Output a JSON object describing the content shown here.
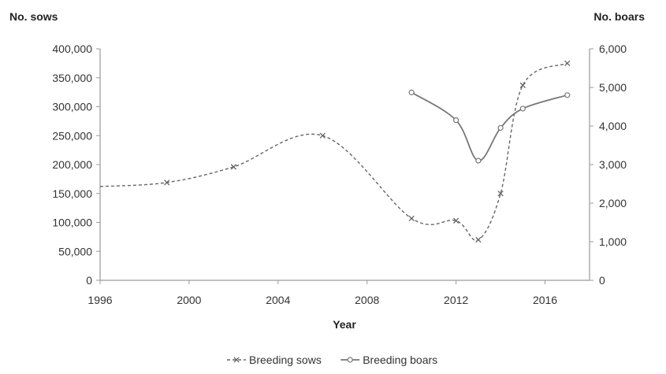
{
  "chart_data": {
    "type": "line",
    "xlabel": "Year",
    "ylabel_left": "No. sows",
    "ylabel_right": "No. boars",
    "xlim": [
      1996,
      2018
    ],
    "x_ticks": [
      1996,
      2000,
      2004,
      2008,
      2012,
      2016
    ],
    "x_tick_labels": [
      "1996",
      "2000",
      "2004",
      "2008",
      "2012",
      "2016"
    ],
    "ylim_left": [
      0,
      400000
    ],
    "y_left_ticks": [
      0,
      50000,
      100000,
      150000,
      200000,
      250000,
      300000,
      350000,
      400000
    ],
    "y_left_tick_labels": [
      "0",
      "50,000",
      "100,000",
      "150,000",
      "200,000",
      "250,000",
      "300,000",
      "350,000",
      "400,000"
    ],
    "ylim_right": [
      0,
      6000
    ],
    "y_right_ticks": [
      0,
      1000,
      2000,
      3000,
      4000,
      5000,
      6000
    ],
    "y_right_tick_labels": [
      "0",
      "1,000",
      "2,000",
      "3,000",
      "4,000",
      "5,000",
      "6,000"
    ],
    "grid": false,
    "legend_position": "bottom",
    "series": [
      {
        "name": "Breeding sows",
        "axis": "left",
        "line_style": "dashed",
        "marker": "x",
        "color": "#666666",
        "x": [
          1996,
          1999,
          2002,
          2006,
          2010,
          2012,
          2013,
          2014,
          2015,
          2017
        ],
        "y": [
          162000,
          169000,
          196000,
          250000,
          107000,
          103000,
          70000,
          150000,
          337000,
          375000
        ],
        "marked": [
          false,
          true,
          true,
          true,
          true,
          true,
          true,
          true,
          true,
          true
        ]
      },
      {
        "name": "Breeding boars",
        "axis": "right",
        "line_style": "solid",
        "marker": "circle",
        "color": "#777777",
        "x": [
          2010,
          2012,
          2013,
          2014,
          2015,
          2017
        ],
        "y": [
          4870,
          4150,
          3100,
          3950,
          4450,
          4800
        ],
        "marked": [
          true,
          true,
          true,
          true,
          true,
          true
        ]
      }
    ]
  }
}
